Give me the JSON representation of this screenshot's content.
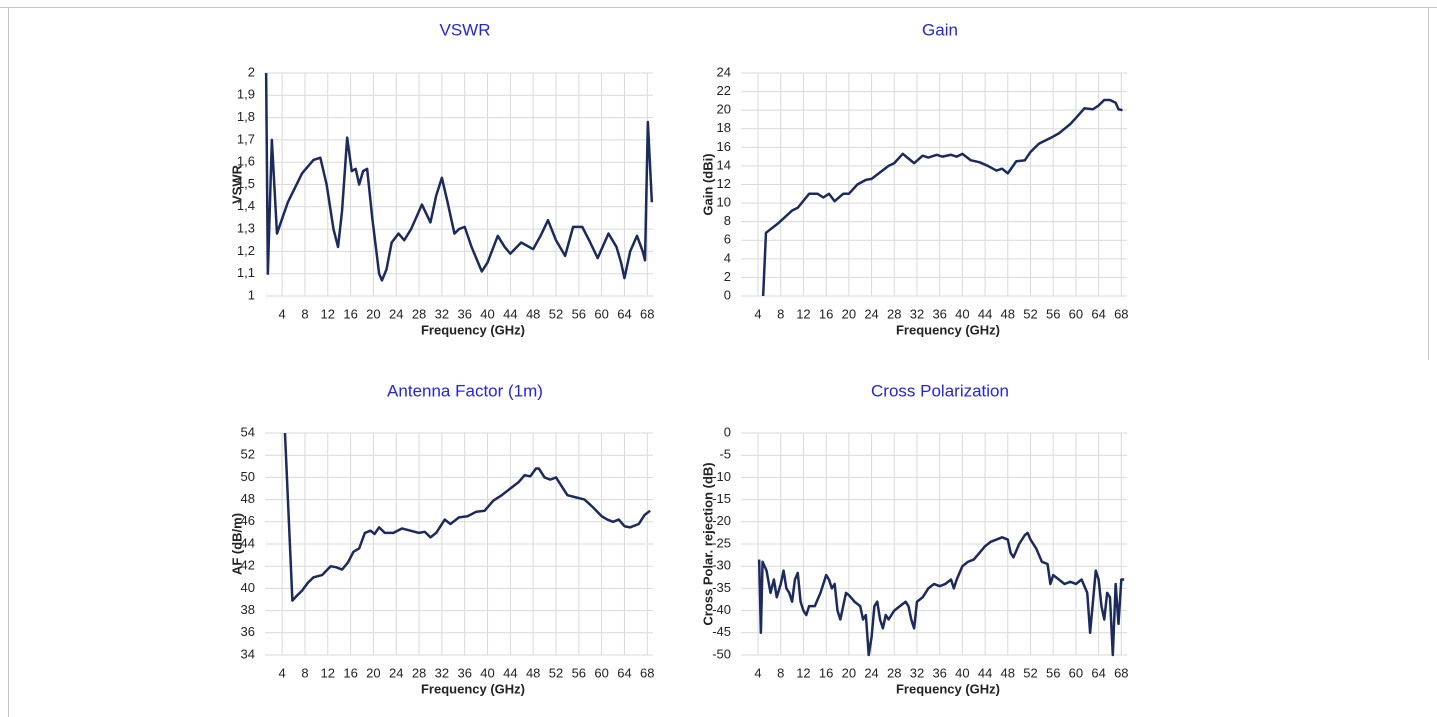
{
  "chart_data": [
    {
      "type": "line",
      "title": "VSWR",
      "x_label": "Frequency  (GHz)",
      "y_label": "VSWR",
      "color": "#1c2a5c",
      "xlim": [
        1,
        69
      ],
      "xticks": [
        4,
        8,
        12,
        16,
        20,
        24,
        28,
        32,
        36,
        40,
        44,
        48,
        52,
        56,
        60,
        64,
        68
      ],
      "ylim": [
        1,
        2
      ],
      "yticks": [
        1,
        {
          "value": 1.1,
          "label": "1,1"
        },
        {
          "value": 1.2,
          "label": "1,2"
        },
        {
          "value": 1.3,
          "label": "1,3"
        },
        {
          "value": 1.4,
          "label": "1,4"
        },
        {
          "value": 1.5,
          "label": "1,5"
        },
        {
          "value": 1.6,
          "label": "1,6"
        },
        {
          "value": 1.7,
          "label": "1,7"
        },
        {
          "value": 1.8,
          "label": "1,8"
        },
        {
          "value": 1.9,
          "label": "1,9"
        },
        2
      ],
      "grid": true,
      "x": [
        1.2,
        1.5,
        2.2,
        3.1,
        5,
        7.5,
        9.5,
        10.7,
        11.8,
        13,
        13.8,
        14.5,
        15.4,
        16.2,
        16.9,
        17.5,
        18.2,
        18.9,
        19.8,
        21,
        21.5,
        22.3,
        23.2,
        24.4,
        25.4,
        26.6,
        28.5,
        30,
        31,
        32,
        33,
        34.2,
        35,
        36,
        37.2,
        39,
        40,
        41.8,
        43,
        44,
        45.9,
        48,
        49.3,
        50.6,
        52,
        53.6,
        55,
        56.6,
        58,
        59.3,
        61.2,
        62.6,
        63.4,
        64,
        65,
        66.2,
        67.2,
        67.6,
        68.1,
        68.8
      ],
      "values": [
        2,
        1.1,
        1.7,
        1.28,
        1.42,
        1.55,
        1.61,
        1.62,
        1.5,
        1.3,
        1.22,
        1.38,
        1.71,
        1.56,
        1.57,
        1.5,
        1.56,
        1.57,
        1.35,
        1.1,
        1.07,
        1.12,
        1.24,
        1.28,
        1.25,
        1.3,
        1.41,
        1.33,
        1.45,
        1.53,
        1.42,
        1.28,
        1.3,
        1.31,
        1.22,
        1.11,
        1.15,
        1.27,
        1.22,
        1.19,
        1.24,
        1.21,
        1.27,
        1.34,
        1.25,
        1.18,
        1.31,
        1.31,
        1.24,
        1.17,
        1.28,
        1.22,
        1.15,
        1.08,
        1.2,
        1.27,
        1.2,
        1.16,
        1.78,
        1.42
      ]
    },
    {
      "type": "line",
      "title": "Gain",
      "x_label": "Frequency  (GHz)",
      "y_label": "Gain  (dBi)",
      "color": "#1c2a5c",
      "xlim": [
        1,
        69
      ],
      "xticks": [
        4,
        8,
        12,
        16,
        20,
        24,
        28,
        32,
        36,
        40,
        44,
        48,
        52,
        56,
        60,
        64,
        68
      ],
      "ylim": [
        0,
        24
      ],
      "yticks": [
        0,
        2,
        4,
        6,
        8,
        10,
        12,
        14,
        16,
        18,
        20,
        22,
        24
      ],
      "grid": true,
      "x": [
        4.9,
        5.4,
        7.5,
        10,
        11,
        13,
        14.5,
        15.5,
        16.5,
        17.5,
        19,
        20,
        21.5,
        23,
        24,
        25.5,
        27,
        28,
        29.5,
        30.5,
        31.5,
        33,
        34,
        35.5,
        36.5,
        38,
        39,
        40,
        41.5,
        43,
        44.5,
        46,
        47,
        48,
        49.5,
        51,
        52,
        53.5,
        55.5,
        57,
        59,
        60.5,
        61.5,
        63,
        64,
        65,
        66,
        67,
        67.5,
        68.2
      ],
      "values": [
        0,
        6.8,
        7.8,
        9.2,
        9.5,
        11,
        11,
        10.6,
        11,
        10.2,
        11,
        11,
        12,
        12.5,
        12.6,
        13.3,
        14,
        14.3,
        15.3,
        14.8,
        14.3,
        15.1,
        14.9,
        15.2,
        15,
        15.2,
        15,
        15.3,
        14.6,
        14.4,
        14,
        13.5,
        13.7,
        13.2,
        14.5,
        14.6,
        15.5,
        16.4,
        17,
        17.5,
        18.5,
        19.5,
        20.2,
        20.1,
        20.5,
        21.1,
        21.1,
        20.8,
        20.1,
        20
      ]
    },
    {
      "type": "line",
      "title": "Antenna Factor (1m)",
      "x_label": "Frequency  (GHz)",
      "y_label": "AF  (dB/m)",
      "color": "#1c2a5c",
      "xlim": [
        1,
        69
      ],
      "xticks": [
        4,
        8,
        12,
        16,
        20,
        24,
        28,
        32,
        36,
        40,
        44,
        48,
        52,
        56,
        60,
        64,
        68
      ],
      "ylim": [
        34,
        54
      ],
      "yticks": [
        34,
        36,
        38,
        40,
        42,
        44,
        46,
        48,
        50,
        52,
        54
      ],
      "grid": true,
      "x": [
        4.5,
        5.8,
        6.5,
        7.5,
        8.5,
        9.5,
        11,
        12.5,
        13.5,
        14.5,
        15.5,
        16.5,
        17.5,
        18.5,
        19.5,
        20.2,
        21,
        22,
        23.5,
        25,
        26.5,
        28,
        29,
        30,
        31,
        32.5,
        33.5,
        35,
        36.5,
        38,
        39.5,
        41,
        42.5,
        44,
        45.5,
        46.5,
        47.5,
        48.5,
        49,
        50,
        51,
        52,
        53,
        54,
        55.5,
        57,
        58.5,
        60,
        61,
        62,
        63,
        64,
        65,
        66.5,
        67.5,
        68.5
      ],
      "values": [
        54,
        38.9,
        39.3,
        39.8,
        40.5,
        41,
        41.2,
        42,
        41.9,
        41.7,
        42.3,
        43.3,
        43.6,
        45,
        45.2,
        44.9,
        45.5,
        45,
        45,
        45.4,
        45.2,
        45,
        45.1,
        44.6,
        45,
        46.2,
        45.8,
        46.4,
        46.5,
        46.9,
        47,
        47.9,
        48.4,
        49,
        49.6,
        50.2,
        50.1,
        50.8,
        50.8,
        50,
        49.8,
        50,
        49.2,
        48.4,
        48.2,
        48,
        47.3,
        46.5,
        46.2,
        46,
        46.2,
        45.6,
        45.5,
        45.8,
        46.6,
        47
      ]
    },
    {
      "type": "line",
      "title": "Cross Polarization",
      "x_label": "Frequency  (GHz)",
      "y_label": "Cross Polar. rejection  (dB)",
      "color": "#1c2a5c",
      "xlim": [
        1,
        69
      ],
      "xticks": [
        4,
        8,
        12,
        16,
        20,
        24,
        28,
        32,
        36,
        40,
        44,
        48,
        52,
        56,
        60,
        64,
        68
      ],
      "ylim": [
        -50,
        0
      ],
      "yticks": [
        -50,
        -45,
        -40,
        -35,
        -30,
        -25,
        -20,
        -15,
        -10,
        -5,
        0
      ],
      "grid": true,
      "x": [
        4.2,
        4.5,
        4.8,
        5.5,
        6.2,
        6.8,
        7.3,
        8,
        8.5,
        9,
        9.5,
        10,
        10.5,
        11,
        11.5,
        12,
        12.5,
        13,
        14,
        15,
        16,
        16.5,
        17,
        17.5,
        18,
        18.5,
        19,
        19.5,
        20,
        21,
        22,
        22.5,
        23,
        23.5,
        24,
        24.5,
        25,
        25.5,
        26,
        26.5,
        27,
        28,
        29,
        30,
        30.5,
        31,
        31.5,
        32,
        33,
        34,
        35,
        36,
        37,
        38,
        38.5,
        39,
        40,
        41,
        42,
        43,
        44,
        45,
        46,
        47,
        48,
        48.5,
        49,
        50,
        51,
        51.5,
        52,
        53,
        54,
        55,
        55.5,
        56,
        57,
        58,
        59,
        60,
        61,
        62,
        62.5,
        63,
        63.5,
        64,
        64.5,
        65,
        65.5,
        66,
        66.5,
        67,
        67.5,
        68,
        68.5
      ],
      "values": [
        -28.5,
        -45,
        -29,
        -31,
        -36,
        -33,
        -37,
        -34,
        -31,
        -35,
        -36,
        -38,
        -33,
        -31.5,
        -38,
        -40,
        -41,
        -39,
        -39,
        -36,
        -32,
        -33,
        -35,
        -34,
        -40,
        -42,
        -39,
        -36,
        -36.5,
        -38,
        -39,
        -42,
        -41,
        -50,
        -46,
        -39,
        -38,
        -42,
        -44,
        -41,
        -42,
        -40,
        -39,
        -38,
        -39,
        -42,
        -44,
        -38,
        -37,
        -35,
        -34,
        -34.5,
        -34,
        -33,
        -35,
        -33,
        -30,
        -29,
        -28.5,
        -27,
        -25.5,
        -24.5,
        -24,
        -23.5,
        -24,
        -27,
        -28,
        -25,
        -23,
        -22.5,
        -24,
        -26,
        -29,
        -29.5,
        -34,
        -32,
        -33,
        -34,
        -33.5,
        -34,
        -33,
        -36,
        -45,
        -38,
        -31,
        -33,
        -39,
        -42,
        -36,
        -37,
        -50,
        -34,
        -43,
        -33,
        -33
      ]
    }
  ]
}
